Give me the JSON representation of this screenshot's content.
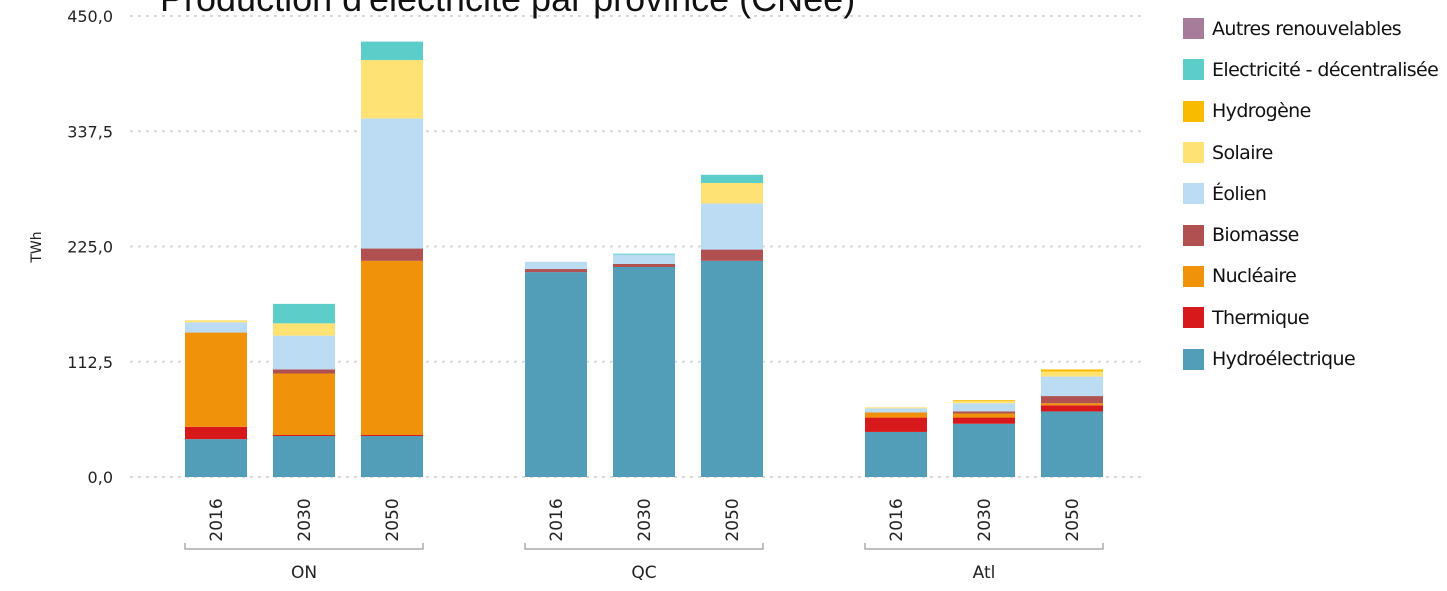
{
  "chart_data": {
    "type": "bar",
    "stacked": true,
    "title": "Production d'électricité par province (CNee)",
    "ylabel": "TWh",
    "ylim": [
      0,
      450
    ],
    "yticks": [
      "0,0",
      "112,5",
      "225,0",
      "337,5",
      "450,0"
    ],
    "grid": true,
    "legend_position": "right",
    "groups": [
      {
        "name": "ON",
        "categories": [
          "2016",
          "2030",
          "2050"
        ]
      },
      {
        "name": "QC",
        "categories": [
          "2016",
          "2030",
          "2050"
        ]
      },
      {
        "name": "Atl",
        "categories": [
          "2016",
          "2030",
          "2050"
        ]
      }
    ],
    "series": [
      {
        "name": "Hydroélectrique",
        "color": "#529eb8",
        "values": [
          37,
          40,
          40,
          200,
          205,
          211,
          44,
          52,
          64
        ]
      },
      {
        "name": "Thermique",
        "color": "#d7191c",
        "values": [
          12,
          1,
          1,
          0,
          0,
          0,
          14,
          6,
          6
        ]
      },
      {
        "name": "Nucléaire",
        "color": "#f0930a",
        "values": [
          92,
          60,
          170,
          0,
          0,
          0,
          5,
          4,
          2
        ]
      },
      {
        "name": "Biomasse",
        "color": "#b05050",
        "values": [
          0,
          4,
          12,
          3,
          3,
          11,
          0,
          2,
          7
        ]
      },
      {
        "name": "Éolien",
        "color": "#bcdcf4",
        "values": [
          10,
          33,
          127,
          7,
          9,
          45,
          4,
          8,
          19
        ]
      },
      {
        "name": "Solaire",
        "color": "#ffe174",
        "values": [
          2,
          12,
          57,
          0,
          0,
          20,
          1,
          2,
          5
        ]
      },
      {
        "name": "Hydrogène",
        "color": "#f9bb00",
        "values": [
          0,
          0,
          0,
          0,
          0,
          0,
          0,
          1,
          2
        ]
      },
      {
        "name": "Electricité - décentralisée",
        "color": "#5ccdc8",
        "values": [
          0,
          19,
          18,
          0,
          1,
          8,
          0,
          0,
          0
        ]
      },
      {
        "name": "Autres renouvelables",
        "color": "#a67c9a",
        "values": [
          0,
          0,
          0,
          0,
          0,
          0,
          0,
          0,
          0
        ]
      }
    ],
    "legend_order": [
      "Autres renouvelables",
      "Electricité - décentralisée",
      "Hydrogène",
      "Solaire",
      "Éolien",
      "Biomasse",
      "Nucléaire",
      "Thermique",
      "Hydroélectrique"
    ]
  }
}
